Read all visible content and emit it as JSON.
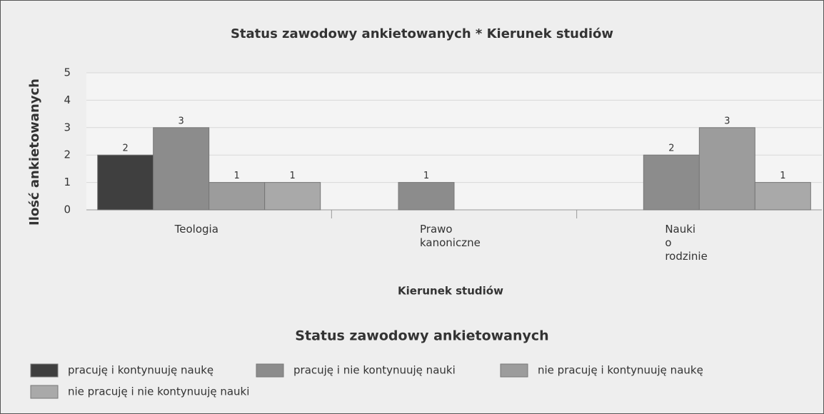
{
  "chart_data": {
    "type": "bar",
    "title": "Status zawodowy ankietowanych * Kierunek studiów",
    "x_label": "Kierunek studiów",
    "y_label": "Ilość ankietowanych",
    "legend_title": "Status zawodowy ankietowanych",
    "categories": [
      "Teologia",
      "Prawo kanoniczne",
      "Nauki o rodzinie"
    ],
    "series": [
      {
        "name": "pracuję i kontynuuję naukę",
        "color": "#3f3f3f",
        "values": [
          2,
          null,
          null
        ]
      },
      {
        "name": "pracuję i nie kontynuuję nauki",
        "color": "#8c8c8c",
        "values": [
          3,
          1,
          2
        ]
      },
      {
        "name": "nie pracuję i kontynuuję naukę",
        "color": "#9c9c9c",
        "values": [
          1,
          null,
          3
        ]
      },
      {
        "name": "nie pracuję i nie kontynuuję nauki",
        "color": "#a9a9a9",
        "values": [
          1,
          null,
          1
        ]
      }
    ],
    "ylim": [
      0,
      5
    ],
    "yticks": [
      0,
      1,
      2,
      3,
      4,
      5
    ],
    "grid": true
  }
}
